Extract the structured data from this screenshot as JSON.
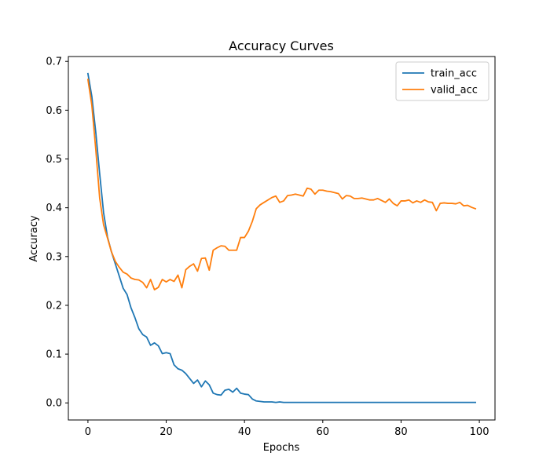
{
  "chart_data": {
    "type": "line",
    "title": "Accuracy Curves",
    "xlabel": "Epochs",
    "ylabel": "Accuracy",
    "xlim": [
      -5,
      104
    ],
    "ylim": [
      -0.035,
      0.71
    ],
    "xticks": [
      0,
      20,
      40,
      60,
      80,
      100
    ],
    "yticks": [
      0.0,
      0.1,
      0.2,
      0.3,
      0.4,
      0.5,
      0.6,
      0.7
    ],
    "grid": false,
    "legend_position": "top-right",
    "x": [
      0,
      1,
      2,
      3,
      4,
      5,
      6,
      7,
      8,
      9,
      10,
      11,
      12,
      13,
      14,
      15,
      16,
      17,
      18,
      19,
      20,
      21,
      22,
      23,
      24,
      25,
      26,
      27,
      28,
      29,
      30,
      31,
      32,
      33,
      34,
      35,
      36,
      37,
      38,
      39,
      40,
      41,
      42,
      43,
      44,
      45,
      46,
      47,
      48,
      49,
      50,
      51,
      52,
      53,
      54,
      55,
      56,
      57,
      58,
      59,
      60,
      61,
      62,
      63,
      64,
      65,
      66,
      67,
      68,
      69,
      70,
      71,
      72,
      73,
      74,
      75,
      76,
      77,
      78,
      79,
      80,
      81,
      82,
      83,
      84,
      85,
      86,
      87,
      88,
      89,
      90,
      91,
      92,
      93,
      94,
      95,
      96,
      97,
      98,
      99
    ],
    "series": [
      {
        "name": "train_acc",
        "color": "#1f77b4",
        "values": [
          0.675,
          0.628,
          0.555,
          0.47,
          0.39,
          0.34,
          0.31,
          0.285,
          0.26,
          0.235,
          0.222,
          0.195,
          0.175,
          0.152,
          0.14,
          0.135,
          0.118,
          0.123,
          0.117,
          0.101,
          0.103,
          0.101,
          0.078,
          0.07,
          0.067,
          0.06,
          0.05,
          0.04,
          0.047,
          0.033,
          0.045,
          0.037,
          0.02,
          0.017,
          0.016,
          0.026,
          0.028,
          0.022,
          0.03,
          0.02,
          0.018,
          0.017,
          0.008,
          0.004,
          0.003,
          0.002,
          0.002,
          0.002,
          0.001,
          0.002,
          0.001,
          0.001,
          0.001,
          0.001,
          0.001,
          0.001,
          0.001,
          0.001,
          0.001,
          0.001,
          0.001,
          0.001,
          0.001,
          0.001,
          0.001,
          0.001,
          0.001,
          0.001,
          0.001,
          0.001,
          0.001,
          0.001,
          0.001,
          0.001,
          0.001,
          0.001,
          0.001,
          0.001,
          0.001,
          0.001,
          0.001,
          0.001,
          0.001,
          0.001,
          0.001,
          0.001,
          0.001,
          0.001,
          0.001,
          0.001,
          0.001,
          0.001,
          0.001,
          0.001,
          0.001,
          0.001,
          0.001,
          0.001,
          0.001,
          0.001
        ]
      },
      {
        "name": "valid_acc",
        "color": "#ff7f0e",
        "values": [
          0.663,
          0.61,
          0.52,
          0.42,
          0.365,
          0.338,
          0.31,
          0.29,
          0.278,
          0.268,
          0.264,
          0.256,
          0.253,
          0.252,
          0.247,
          0.236,
          0.253,
          0.232,
          0.237,
          0.253,
          0.248,
          0.253,
          0.249,
          0.262,
          0.236,
          0.273,
          0.28,
          0.285,
          0.27,
          0.296,
          0.297,
          0.272,
          0.313,
          0.318,
          0.322,
          0.321,
          0.313,
          0.313,
          0.313,
          0.339,
          0.339,
          0.352,
          0.372,
          0.398,
          0.406,
          0.411,
          0.416,
          0.421,
          0.424,
          0.411,
          0.414,
          0.425,
          0.426,
          0.428,
          0.426,
          0.424,
          0.44,
          0.438,
          0.428,
          0.436,
          0.436,
          0.434,
          0.433,
          0.431,
          0.429,
          0.418,
          0.425,
          0.424,
          0.419,
          0.419,
          0.42,
          0.418,
          0.416,
          0.416,
          0.419,
          0.415,
          0.411,
          0.418,
          0.409,
          0.404,
          0.414,
          0.414,
          0.416,
          0.41,
          0.414,
          0.411,
          0.416,
          0.412,
          0.411,
          0.394,
          0.409,
          0.41,
          0.409,
          0.409,
          0.408,
          0.411,
          0.404,
          0.405,
          0.401,
          0.398
        ]
      }
    ]
  }
}
